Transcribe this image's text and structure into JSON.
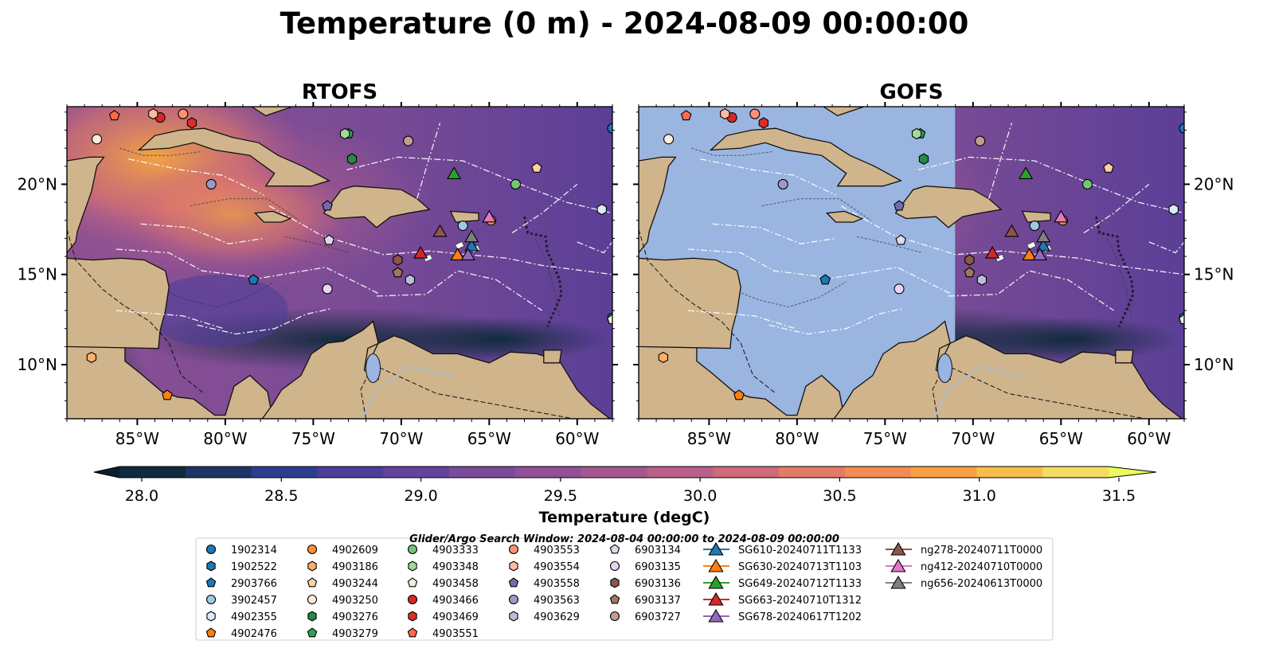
{
  "title": "Temperature (0 m) - 2024-08-09 00:00:00",
  "panels": [
    {
      "title": "RTOFS",
      "covered_fraction": 0
    },
    {
      "title": "GOFS",
      "covered_fraction": 0.58
    }
  ],
  "colors": {
    "land": "#cfb48c",
    "mask": "#9ab5e0",
    "ocean_warm": "#7a4b95",
    "ocean_east": "#5b3f96",
    "coast_cold": "#0d2a3a",
    "hot": "#f6a83f",
    "eez_line": "#ffffff"
  },
  "chart_data": {
    "type": "heatmap",
    "variable": "Temperature (degC)",
    "depth_m": 0,
    "time": "2024-08-09 00:00:00",
    "xlim": [
      -89,
      -58
    ],
    "ylim": [
      7,
      24.3
    ],
    "x_ticks": [
      -85,
      -80,
      -75,
      -70,
      -65,
      -60
    ],
    "y_ticks": [
      10,
      15,
      20
    ],
    "x_tick_labels": [
      "85°W",
      "80°W",
      "75°W",
      "70°W",
      "65°W",
      "60°W"
    ],
    "y_tick_labels": [
      "10°N",
      "15°N",
      "20°N"
    ],
    "colorbar": {
      "label": "Temperature (degC)",
      "vmin": 28.0,
      "vmax": 31.5,
      "step": 0.25,
      "extend": "both",
      "ticks": [
        28.0,
        28.5,
        29.0,
        29.5,
        30.0,
        30.5,
        31.0,
        31.5
      ],
      "tick_labels": [
        "28.0",
        "28.5",
        "29.0",
        "29.5",
        "30.0",
        "30.5",
        "31.0",
        "31.5"
      ],
      "colors": [
        "#0f2a3d",
        "#1c3566",
        "#2e3c8f",
        "#4b3e99",
        "#63439c",
        "#7a4b9a",
        "#904f96",
        "#a45690",
        "#b95f88",
        "#cf6a79",
        "#e47a68",
        "#f38c53",
        "#f7a141",
        "#f6bd49",
        "#f1dd5f"
      ],
      "low_color": "#0a1e2b",
      "high_color": "#ecfa5c"
    },
    "search_window": "Glider/Argo Search Window: 2024-08-04 00:00:00 to 2024-08-09 00:00:00",
    "floats": [
      {
        "id": "1902314",
        "color": "#1f77b4",
        "marker": "circle",
        "lon": -58.0,
        "lat": 23.1
      },
      {
        "id": "1902522",
        "color": "#1f77b4",
        "marker": "hexagon",
        "lon": -58.0,
        "lat": 12.6
      },
      {
        "id": "2903766",
        "color": "#1f77b4",
        "marker": "pentagon",
        "lon": -78.4,
        "lat": 14.7
      },
      {
        "id": "3902457",
        "color": "#9ecae1",
        "marker": "circle",
        "lon": -66.5,
        "lat": 17.7
      },
      {
        "id": "4902355",
        "color": "#deebf7",
        "marker": "hexagon",
        "lon": -58.6,
        "lat": 18.6
      },
      {
        "id": "4902476",
        "color": "#ff7f0e",
        "marker": "pentagon",
        "lon": -83.3,
        "lat": 8.3
      },
      {
        "id": "4902609",
        "color": "#fd8d3c",
        "marker": "circle",
        "lon": -64.9,
        "lat": 18.0
      },
      {
        "id": "4903186",
        "color": "#fdae6b",
        "marker": "hexagon",
        "lon": -87.6,
        "lat": 10.4
      },
      {
        "id": "4903244",
        "color": "#fdd0a2",
        "marker": "pentagon",
        "lon": -62.3,
        "lat": 20.9
      },
      {
        "id": "4903250",
        "color": "#feeddc",
        "marker": "circle",
        "lon": -87.3,
        "lat": 22.5
      },
      {
        "id": "4903276",
        "color": "#238b45",
        "marker": "hexagon",
        "lon": -72.8,
        "lat": 21.4
      },
      {
        "id": "4903279",
        "color": "#31a354",
        "marker": "pentagon",
        "lon": -73.0,
        "lat": 22.8
      },
      {
        "id": "4903333",
        "color": "#74c476",
        "marker": "circle",
        "lon": -63.5,
        "lat": 20.0
      },
      {
        "id": "4903348",
        "color": "#a1d99b",
        "marker": "hexagon",
        "lon": -73.2,
        "lat": 22.8
      },
      {
        "id": "4903458",
        "color": "#e5f5e0",
        "marker": "pentagon",
        "lon": -58.0,
        "lat": 12.5
      },
      {
        "id": "4903466",
        "color": "#d62728",
        "marker": "circle",
        "lon": -83.7,
        "lat": 23.7
      },
      {
        "id": "4903469",
        "color": "#de2d26",
        "marker": "hexagon",
        "lon": -81.9,
        "lat": 23.4
      },
      {
        "id": "4903551",
        "color": "#fb6a4a",
        "marker": "pentagon",
        "lon": -86.3,
        "lat": 23.8
      },
      {
        "id": "4903553",
        "color": "#fc9272",
        "marker": "circle",
        "lon": -82.4,
        "lat": 23.9
      },
      {
        "id": "4903554",
        "color": "#fcbba1",
        "marker": "hexagon",
        "lon": -84.1,
        "lat": 23.9
      },
      {
        "id": "4903558",
        "color": "#756bb1",
        "marker": "pentagon",
        "lon": -74.2,
        "lat": 18.8
      },
      {
        "id": "4903563",
        "color": "#9e9ac8",
        "marker": "circle",
        "lon": -80.8,
        "lat": 20.0
      },
      {
        "id": "4903629",
        "color": "#bcbddc",
        "marker": "hexagon",
        "lon": -69.5,
        "lat": 14.7
      },
      {
        "id": "6903134",
        "color": "#dadaeb",
        "marker": "pentagon",
        "lon": -74.1,
        "lat": 16.9
      },
      {
        "id": "6903135",
        "color": "#e8d5f5",
        "marker": "circle",
        "lon": -74.2,
        "lat": 14.2
      },
      {
        "id": "6903136",
        "color": "#8c564b",
        "marker": "hexagon",
        "lon": -70.2,
        "lat": 15.8
      },
      {
        "id": "6903137",
        "color": "#a0765f",
        "marker": "pentagon",
        "lon": -70.2,
        "lat": 15.1
      },
      {
        "id": "6903727",
        "color": "#c49c94",
        "marker": "circle",
        "lon": -69.6,
        "lat": 22.4
      },
      {
        "id": "SG610-20240711T1133",
        "color": "#1f77b4",
        "marker": "triangle",
        "lon": -66.0,
        "lat": 16.6
      },
      {
        "id": "SG630-20240713T1103",
        "color": "#ff7f0e",
        "marker": "triangle",
        "lon": -66.8,
        "lat": 16.1
      },
      {
        "id": "SG649-20240712T1133",
        "color": "#2ca02c",
        "marker": "triangle",
        "lon": -67.0,
        "lat": 20.6
      },
      {
        "id": "SG663-20240710T1312",
        "color": "#d62728",
        "marker": "triangle",
        "lon": -68.9,
        "lat": 16.2
      },
      {
        "id": "SG678-20240617T1202",
        "color": "#9467bd",
        "marker": "triangle",
        "lon": -66.2,
        "lat": 16.1
      },
      {
        "id": "ng278-20240711T0000",
        "color": "#8c564b",
        "marker": "triangle",
        "lon": -67.8,
        "lat": 17.4
      },
      {
        "id": "ng412-20240710T0000",
        "color": "#e377c2",
        "marker": "triangle",
        "lon": -65.0,
        "lat": 18.2
      },
      {
        "id": "ng656-20240613T0000",
        "color": "#7f7f7f",
        "marker": "triangle",
        "lon": -66.0,
        "lat": 17.1
      }
    ]
  }
}
